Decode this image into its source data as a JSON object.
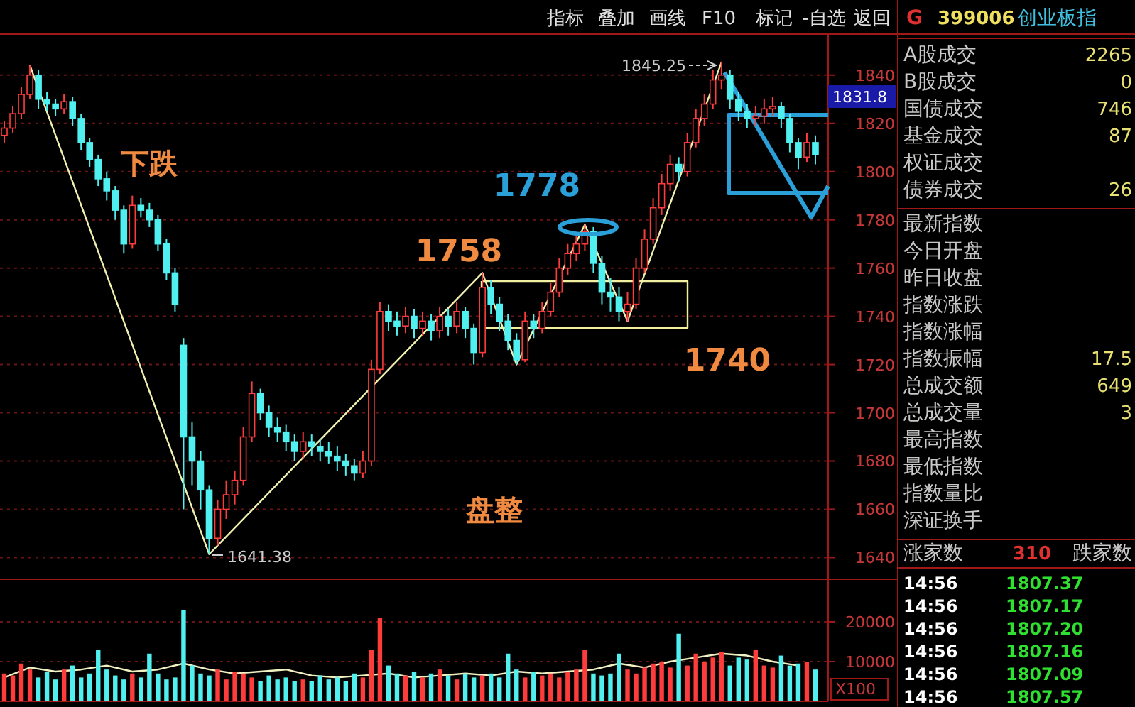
{
  "chart_data": [
    {
      "type": "candlestick",
      "categories": [
        null,
        null,
        null,
        null,
        null,
        null,
        null,
        null,
        null,
        null,
        null,
        null,
        null,
        null,
        null,
        null,
        null,
        null,
        null,
        null,
        null,
        null,
        null,
        null,
        null,
        null,
        null,
        null,
        null,
        null,
        null,
        null,
        null,
        null,
        null,
        null,
        null,
        null,
        null,
        null,
        null,
        null,
        null,
        null,
        null,
        null,
        null,
        null,
        null,
        null,
        null,
        null,
        null,
        null,
        null,
        null,
        null,
        null,
        null,
        null,
        null,
        null,
        null,
        null,
        null,
        null,
        null,
        null,
        null,
        null,
        null,
        null,
        null,
        null,
        null,
        null,
        null,
        null,
        null,
        null,
        null,
        null,
        null,
        null,
        null,
        null,
        null,
        null,
        null,
        null,
        null,
        null,
        null,
        null,
        null,
        null,
        null
      ],
      "ohlc": [
        [
          1815,
          1821,
          1812,
          1818
        ],
        [
          1818,
          1827,
          1816,
          1824
        ],
        [
          1824,
          1835,
          1822,
          1832
        ],
        [
          1832,
          1844,
          1830,
          1840
        ],
        [
          1840,
          1842,
          1826,
          1830
        ],
        [
          1830,
          1833,
          1825,
          1828
        ],
        [
          1828,
          1830,
          1823,
          1826
        ],
        [
          1826,
          1832,
          1824,
          1829
        ],
        [
          1829,
          1831,
          1819,
          1822
        ],
        [
          1822,
          1824,
          1809,
          1812
        ],
        [
          1812,
          1814,
          1802,
          1805
        ],
        [
          1805,
          1807,
          1794,
          1797
        ],
        [
          1797,
          1800,
          1788,
          1792
        ],
        [
          1792,
          1794,
          1780,
          1784
        ],
        [
          1784,
          1786,
          1766,
          1770
        ],
        [
          1770,
          1790,
          1768,
          1786
        ],
        [
          1786,
          1789,
          1781,
          1784
        ],
        [
          1784,
          1787,
          1777,
          1780
        ],
        [
          1780,
          1782,
          1767,
          1770
        ],
        [
          1770,
          1772,
          1755,
          1758
        ],
        [
          1758,
          1760,
          1742,
          1745
        ],
        [
          1728,
          1731,
          1660,
          1690
        ],
        [
          1690,
          1696,
          1670,
          1680
        ],
        [
          1680,
          1684,
          1660,
          1668
        ],
        [
          1668,
          1670,
          1641.38,
          1648
        ],
        [
          1648,
          1664,
          1645,
          1660
        ],
        [
          1660,
          1672,
          1656,
          1666
        ],
        [
          1666,
          1676,
          1662,
          1672
        ],
        [
          1672,
          1694,
          1670,
          1690
        ],
        [
          1690,
          1713,
          1688,
          1708
        ],
        [
          1708,
          1710,
          1697,
          1700
        ],
        [
          1700,
          1703,
          1690,
          1694
        ],
        [
          1694,
          1698,
          1688,
          1692
        ],
        [
          1692,
          1695,
          1684,
          1688
        ],
        [
          1688,
          1691,
          1680,
          1684
        ],
        [
          1684,
          1692,
          1681,
          1688
        ],
        [
          1688,
          1691,
          1682,
          1686
        ],
        [
          1686,
          1689,
          1680,
          1684
        ],
        [
          1684,
          1688,
          1679,
          1682
        ],
        [
          1682,
          1686,
          1676,
          1680
        ],
        [
          1680,
          1683,
          1674,
          1678
        ],
        [
          1678,
          1681,
          1672,
          1675
        ],
        [
          1675,
          1684,
          1673,
          1680
        ],
        [
          1680,
          1722,
          1678,
          1718
        ],
        [
          1718,
          1746,
          1716,
          1742
        ],
        [
          1742,
          1745,
          1734,
          1738
        ],
        [
          1738,
          1742,
          1732,
          1736
        ],
        [
          1736,
          1744,
          1733,
          1740
        ],
        [
          1740,
          1743,
          1731,
          1735
        ],
        [
          1735,
          1742,
          1732,
          1738
        ],
        [
          1738,
          1741,
          1730,
          1734
        ],
        [
          1734,
          1744,
          1731,
          1740
        ],
        [
          1740,
          1743,
          1732,
          1736
        ],
        [
          1736,
          1746,
          1733,
          1742
        ],
        [
          1742,
          1744,
          1731,
          1735
        ],
        [
          1735,
          1737,
          1720,
          1725
        ],
        [
          1725,
          1758,
          1723,
          1752
        ],
        [
          1752,
          1755,
          1741,
          1745
        ],
        [
          1745,
          1748,
          1734,
          1738
        ],
        [
          1738,
          1741,
          1726,
          1730
        ],
        [
          1730,
          1733,
          1720,
          1722
        ],
        [
          1722,
          1742,
          1721,
          1738
        ],
        [
          1738,
          1741,
          1731,
          1735
        ],
        [
          1735,
          1746,
          1733,
          1742
        ],
        [
          1742,
          1754,
          1740,
          1750
        ],
        [
          1750,
          1764,
          1748,
          1760
        ],
        [
          1760,
          1770,
          1757,
          1766
        ],
        [
          1766,
          1774,
          1763,
          1770
        ],
        [
          1770,
          1778,
          1767,
          1775
        ],
        [
          1775,
          1777,
          1758,
          1762
        ],
        [
          1762,
          1765,
          1745,
          1750
        ],
        [
          1750,
          1756,
          1742,
          1748
        ],
        [
          1748,
          1752,
          1738,
          1742
        ],
        [
          1742,
          1750,
          1738,
          1745
        ],
        [
          1745,
          1764,
          1743,
          1760
        ],
        [
          1760,
          1776,
          1758,
          1772
        ],
        [
          1772,
          1789,
          1770,
          1785
        ],
        [
          1785,
          1799,
          1782,
          1795
        ],
        [
          1795,
          1807,
          1792,
          1803
        ],
        [
          1803,
          1806,
          1796,
          1800
        ],
        [
          1800,
          1816,
          1798,
          1812
        ],
        [
          1812,
          1826,
          1810,
          1822
        ],
        [
          1822,
          1832,
          1819,
          1828
        ],
        [
          1828,
          1842,
          1826,
          1838
        ],
        [
          1838,
          1845.25,
          1834,
          1840
        ],
        [
          1840,
          1842,
          1826,
          1830
        ],
        [
          1830,
          1833,
          1821,
          1825
        ],
        [
          1825,
          1828,
          1818,
          1822
        ],
        [
          1822,
          1827,
          1819,
          1823
        ],
        [
          1823,
          1830,
          1820,
          1826
        ],
        [
          1826,
          1831,
          1823,
          1827
        ],
        [
          1827,
          1829,
          1818,
          1822
        ],
        [
          1822,
          1824,
          1808,
          1812
        ],
        [
          1812,
          1814,
          1801,
          1806
        ],
        [
          1806,
          1816,
          1804,
          1812
        ],
        [
          1812,
          1815,
          1803,
          1807
        ],
        null
      ],
      "colors": [
        "#ff3c3c",
        "#ff3c3c",
        "#ff3c3c",
        "#ff3c3c",
        "#50f0f0",
        "#50f0f0",
        "#50f0f0",
        "#ff3c3c",
        "#50f0f0",
        "#50f0f0",
        "#50f0f0",
        "#50f0f0",
        "#50f0f0",
        "#50f0f0",
        "#50f0f0",
        "#ff3c3c",
        "#50f0f0",
        "#50f0f0",
        "#50f0f0",
        "#50f0f0",
        "#50f0f0",
        "#50f0f0",
        "#50f0f0",
        "#50f0f0",
        "#50f0f0",
        "#ff3c3c",
        "#ff3c3c",
        "#ff3c3c",
        "#ff3c3c",
        "#ff3c3c",
        "#50f0f0",
        "#50f0f0",
        "#50f0f0",
        "#50f0f0",
        "#50f0f0",
        "#ff3c3c",
        "#50f0f0",
        "#50f0f0",
        "#50f0f0",
        "#50f0f0",
        "#50f0f0",
        "#50f0f0",
        "#ff3c3c",
        "#ff3c3c",
        "#ff3c3c",
        "#50f0f0",
        "#50f0f0",
        "#ff3c3c",
        "#50f0f0",
        "#ff3c3c",
        "#50f0f0",
        "#ff3c3c",
        "#50f0f0",
        "#ff3c3c",
        "#50f0f0",
        "#50f0f0",
        "#ff3c3c",
        "#50f0f0",
        "#50f0f0",
        "#50f0f0",
        "#50f0f0",
        "#ff3c3c",
        "#50f0f0",
        "#ff3c3c",
        "#ff3c3c",
        "#ff3c3c",
        "#ff3c3c",
        "#ff3c3c",
        "#ff3c3c",
        "#50f0f0",
        "#50f0f0",
        "#50f0f0",
        "#50f0f0",
        "#ff3c3c",
        "#ff3c3c",
        "#ff3c3c",
        "#ff3c3c",
        "#ff3c3c",
        "#ff3c3c",
        "#50f0f0",
        "#ff3c3c",
        "#ff3c3c",
        "#ff3c3c",
        "#ff3c3c",
        "#ff3c3c",
        "#50f0f0",
        "#50f0f0",
        "#50f0f0",
        "#ff3c3c",
        "#ff3c3c",
        "#ff3c3c",
        "#50f0f0",
        "#50f0f0",
        "#50f0f0",
        "#ff3c3c",
        "#50f0f0",
        null
      ],
      "ylim": [
        1631,
        1857
      ],
      "yticks": [
        1640,
        1660,
        1680,
        1700,
        1720,
        1740,
        1760,
        1780,
        1800,
        1820,
        1840
      ],
      "grid": "y",
      "tick_labels": "y",
      "series": [
        {
          "type": "line",
          "color": "#f0f0b0",
          "values": [
            null,
            null,
            null,
            1844,
            null,
            null,
            null,
            null,
            null,
            null,
            null,
            null,
            null,
            null,
            null,
            null,
            null,
            null,
            null,
            null,
            null,
            null,
            null,
            null,
            1641.38,
            null,
            null,
            null,
            null,
            null,
            null,
            null,
            null,
            null,
            null,
            null,
            null,
            null,
            null,
            null,
            null,
            null,
            null,
            null,
            null,
            null,
            null,
            null,
            null,
            null,
            null,
            null,
            null,
            null,
            null,
            null,
            1758,
            null,
            null,
            null,
            1720,
            null,
            null,
            null,
            null,
            null,
            null,
            null,
            1778,
            null,
            null,
            null,
            null,
            1738,
            null,
            null,
            null,
            null,
            null,
            null,
            null,
            null,
            null,
            null,
            1845.25,
            null,
            null,
            null,
            null,
            null,
            null,
            null,
            null,
            null,
            null,
            null,
            null
          ]
        }
      ],
      "annotations": [
        "下跌",
        "1758",
        "1778",
        "1740",
        "盘整",
        "1641.38",
        "1845.25",
        "1831.8"
      ]
    },
    {
      "type": "bar",
      "categories": [
        null,
        null,
        null,
        null,
        null,
        null,
        null,
        null,
        null,
        null,
        null,
        null,
        null,
        null,
        null,
        null,
        null,
        null,
        null,
        null,
        null,
        null,
        null,
        null,
        null,
        null,
        null,
        null,
        null,
        null,
        null,
        null,
        null,
        null,
        null,
        null,
        null,
        null,
        null,
        null,
        null,
        null,
        null,
        null,
        null,
        null,
        null,
        null,
        null,
        null,
        null,
        null,
        null,
        null,
        null,
        null,
        null,
        null,
        null,
        null,
        null,
        null,
        null,
        null,
        null,
        null,
        null,
        null,
        null,
        null,
        null,
        null,
        null,
        null,
        null,
        null,
        null,
        null,
        null,
        null,
        null,
        null,
        null,
        null,
        null,
        null,
        null,
        null,
        null,
        null,
        null,
        null,
        null,
        null,
        null,
        null,
        null
      ],
      "values": [
        7000,
        6500,
        9500,
        8000,
        6000,
        7500,
        5500,
        8000,
        9000,
        6000,
        7000,
        13000,
        8000,
        6500,
        5500,
        7000,
        6000,
        12000,
        7000,
        5500,
        6000,
        23000,
        9000,
        7000,
        6500,
        8000,
        5500,
        7500,
        7000,
        6000,
        5000,
        6500,
        5500,
        6000,
        5000,
        5500,
        5000,
        6500,
        5500,
        6000,
        5000,
        7000,
        6000,
        13000,
        21000,
        9000,
        7000,
        6500,
        7500,
        6000,
        7000,
        8000,
        6500,
        5500,
        7000,
        6000,
        6500,
        7000,
        6000,
        12000,
        8000,
        6000,
        7500,
        6500,
        7000,
        6000,
        7500,
        8000,
        13000,
        7000,
        6500,
        7000,
        12000,
        8000,
        7000,
        8500,
        9500,
        10000,
        8500,
        17000,
        9000,
        12000,
        10000,
        11000,
        12500,
        9000,
        11000,
        10500,
        13000,
        9000,
        8500,
        11500,
        9000,
        9500,
        10000,
        8000,
        null
      ],
      "colors": [
        "#ff3c3c",
        "#ff3c3c",
        "#ff3c3c",
        "#ff3c3c",
        "#50f0f0",
        "#50f0f0",
        "#50f0f0",
        "#ff3c3c",
        "#50f0f0",
        "#50f0f0",
        "#50f0f0",
        "#50f0f0",
        "#50f0f0",
        "#50f0f0",
        "#50f0f0",
        "#ff3c3c",
        "#50f0f0",
        "#50f0f0",
        "#50f0f0",
        "#50f0f0",
        "#50f0f0",
        "#50f0f0",
        "#50f0f0",
        "#50f0f0",
        "#50f0f0",
        "#ff3c3c",
        "#ff3c3c",
        "#ff3c3c",
        "#ff3c3c",
        "#ff3c3c",
        "#50f0f0",
        "#50f0f0",
        "#50f0f0",
        "#50f0f0",
        "#50f0f0",
        "#ff3c3c",
        "#50f0f0",
        "#50f0f0",
        "#50f0f0",
        "#50f0f0",
        "#50f0f0",
        "#50f0f0",
        "#ff3c3c",
        "#ff3c3c",
        "#ff3c3c",
        "#50f0f0",
        "#50f0f0",
        "#ff3c3c",
        "#50f0f0",
        "#ff3c3c",
        "#50f0f0",
        "#ff3c3c",
        "#50f0f0",
        "#ff3c3c",
        "#50f0f0",
        "#50f0f0",
        "#ff3c3c",
        "#50f0f0",
        "#50f0f0",
        "#50f0f0",
        "#50f0f0",
        "#ff3c3c",
        "#50f0f0",
        "#ff3c3c",
        "#ff3c3c",
        "#ff3c3c",
        "#ff3c3c",
        "#ff3c3c",
        "#ff3c3c",
        "#50f0f0",
        "#50f0f0",
        "#50f0f0",
        "#50f0f0",
        "#ff3c3c",
        "#ff3c3c",
        "#ff3c3c",
        "#ff3c3c",
        "#ff3c3c",
        "#ff3c3c",
        "#50f0f0",
        "#ff3c3c",
        "#ff3c3c",
        "#ff3c3c",
        "#ff3c3c",
        "#ff3c3c",
        "#50f0f0",
        "#50f0f0",
        "#50f0f0",
        "#ff3c3c",
        "#ff3c3c",
        "#ff3c3c",
        "#50f0f0",
        "#50f0f0",
        "#50f0f0",
        "#ff3c3c",
        "#50f0f0",
        null
      ],
      "ylim": [
        0,
        30700
      ],
      "yticks": [
        10000,
        20000
      ],
      "grid": "y",
      "tick_labels": "y",
      "series": [
        {
          "type": "line",
          "color": "#f0f0c0",
          "values": [
            6000,
            null,
            null,
            8500,
            null,
            null,
            7500,
            null,
            null,
            8000,
            null,
            null,
            9000,
            null,
            null,
            7500,
            null,
            null,
            8000,
            null,
            null,
            9500,
            null,
            null,
            8000,
            null,
            null,
            7000,
            null,
            null,
            7500,
            null,
            null,
            8000,
            null,
            null,
            6500,
            null,
            null,
            6000,
            null,
            null,
            6500,
            null,
            null,
            7000,
            null,
            null,
            6000,
            null,
            null,
            6500,
            null,
            null,
            7000,
            null,
            null,
            6500,
            null,
            null,
            7500,
            null,
            null,
            7000,
            null,
            null,
            7500,
            null,
            null,
            8000,
            null,
            null,
            9500,
            null,
            null,
            8500,
            null,
            null,
            10000,
            null,
            null,
            11000,
            null,
            null,
            12000,
            null,
            null,
            11500,
            null,
            null,
            10000,
            null,
            null,
            9000,
            null,
            null,
            null
          ]
        }
      ],
      "annotations": [
        "X100"
      ]
    },
    {
      "type": "other",
      "annotations": [
        "G",
        "399006",
        "创业板指",
        "A股成交",
        "2265",
        "B股成交",
        "0",
        "国债成交",
        "746",
        "基金成交",
        "87",
        "权证成交",
        "债券成交",
        "26",
        "最新指数",
        "今日开盘",
        "昨日收盘",
        "指数涨跌",
        "指数涨幅",
        "指数振幅",
        "17.5",
        "总成交额",
        "649",
        "总成交量",
        "3",
        "最高指数",
        "最低指数",
        "指数量比",
        "深证换手",
        "涨家数",
        "310",
        "跌家数",
        "14:56",
        "1807.37",
        "14:56",
        "1807.17",
        "14:56",
        "1807.20",
        "14:56",
        "1807.16",
        "14:56",
        "1807.09",
        "14:56",
        "1807.57"
      ]
    },
    {
      "type": "other",
      "annotations": [
        "指标",
        "叠加",
        "画线",
        "F10",
        "标记",
        "-自选",
        "返回"
      ]
    }
  ]
}
